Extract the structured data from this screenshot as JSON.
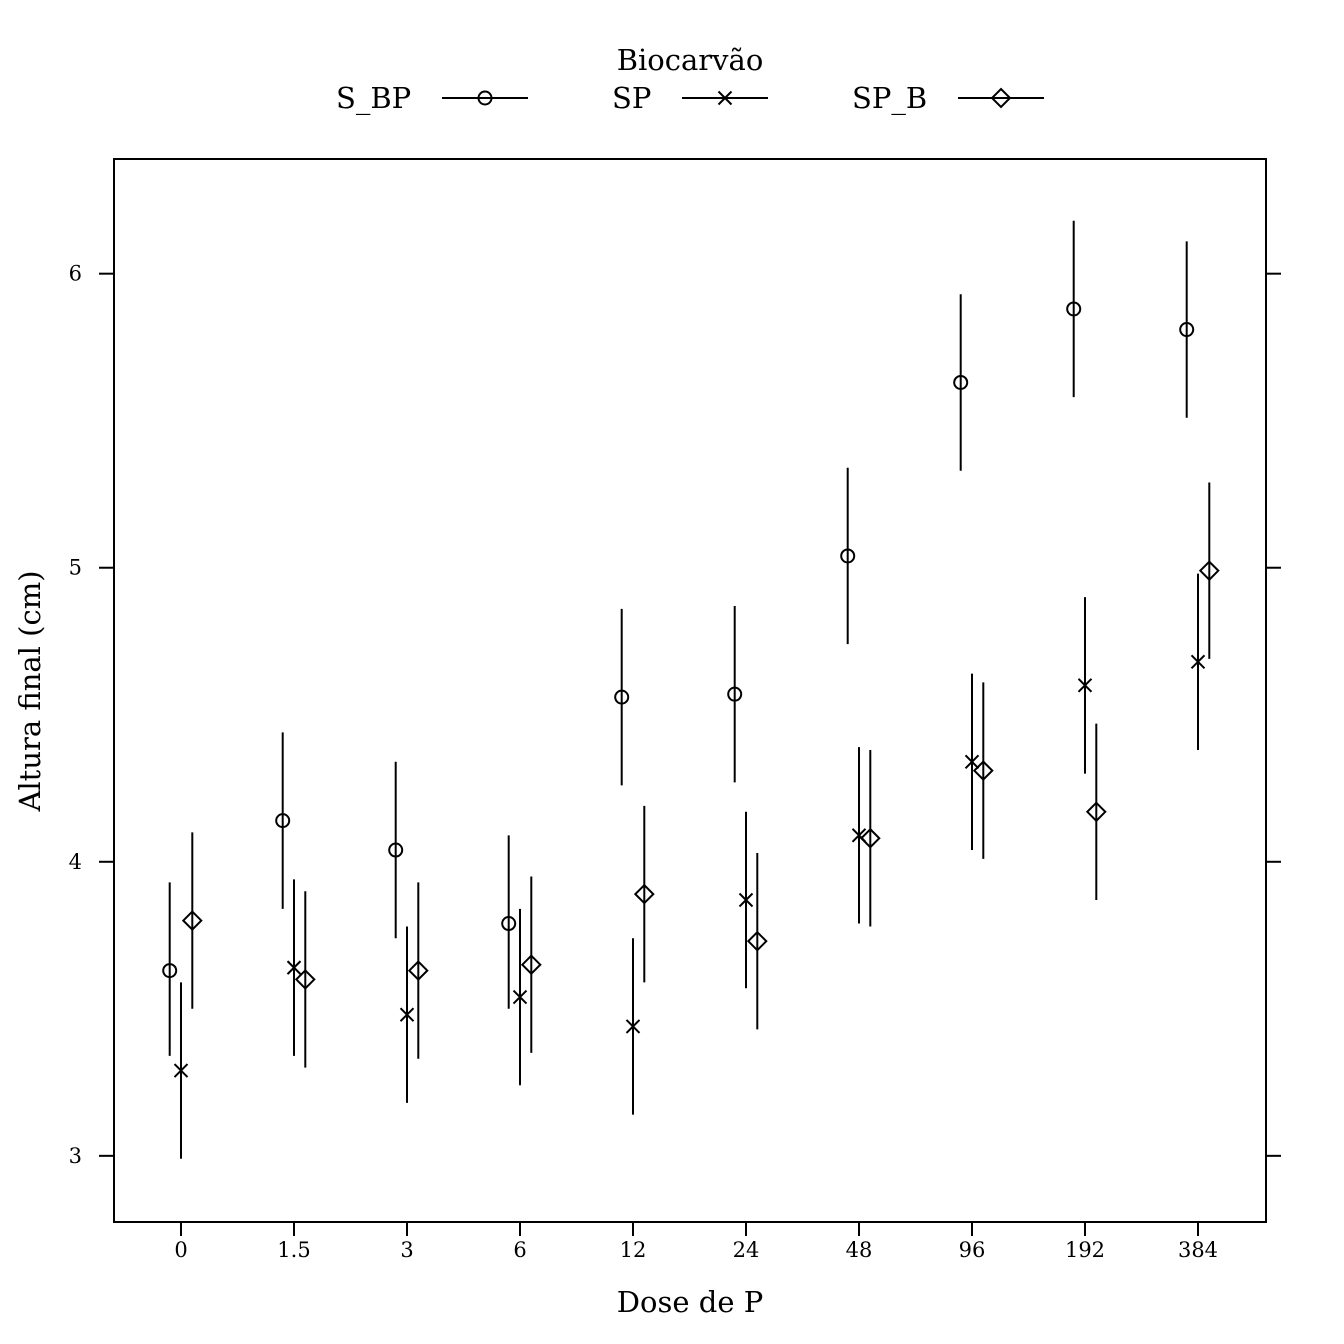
{
  "chart_data": {
    "type": "scatter",
    "xlabel": "Dose de P",
    "ylabel": "Altura final (cm)",
    "categories": [
      "0",
      "1.5",
      "3",
      "6",
      "12",
      "24",
      "48",
      "96",
      "192",
      "384"
    ],
    "ylim": [
      2.775,
      6.39
    ],
    "yticks": [
      3,
      4,
      5,
      6
    ],
    "grid": false,
    "legend": {
      "title": "Biocarvão",
      "placement": "top",
      "entries": [
        "S_BP",
        "SP",
        "SP_B"
      ]
    },
    "series": [
      {
        "name": "S_BP",
        "marker": "circle",
        "values": [
          3.63,
          4.14,
          4.04,
          3.79,
          4.56,
          4.57,
          5.04,
          5.63,
          5.88,
          5.81
        ],
        "lower": [
          3.34,
          3.84,
          3.74,
          3.5,
          4.26,
          4.27,
          4.74,
          5.33,
          5.58,
          5.51
        ],
        "upper": [
          3.93,
          4.44,
          4.34,
          4.09,
          4.86,
          4.87,
          5.34,
          5.93,
          6.18,
          6.11
        ]
      },
      {
        "name": "SP",
        "marker": "x",
        "values": [
          3.29,
          3.64,
          3.48,
          3.54,
          3.44,
          3.87,
          4.09,
          4.34,
          4.6,
          4.68
        ],
        "lower": [
          2.99,
          3.34,
          3.18,
          3.24,
          3.14,
          3.57,
          3.79,
          4.04,
          4.3,
          4.38
        ],
        "upper": [
          3.59,
          3.94,
          3.78,
          3.84,
          3.74,
          4.17,
          4.39,
          4.64,
          4.9,
          4.98
        ]
      },
      {
        "name": "SP_B",
        "marker": "diamond",
        "values": [
          3.8,
          3.6,
          3.63,
          3.65,
          3.89,
          3.73,
          4.08,
          4.31,
          4.17,
          4.99
        ],
        "lower": [
          3.5,
          3.3,
          3.33,
          3.35,
          3.59,
          3.43,
          3.78,
          4.01,
          3.87,
          4.69
        ],
        "upper": [
          4.1,
          3.9,
          3.93,
          3.95,
          4.19,
          4.03,
          4.38,
          4.61,
          4.47,
          5.29
        ]
      }
    ]
  }
}
